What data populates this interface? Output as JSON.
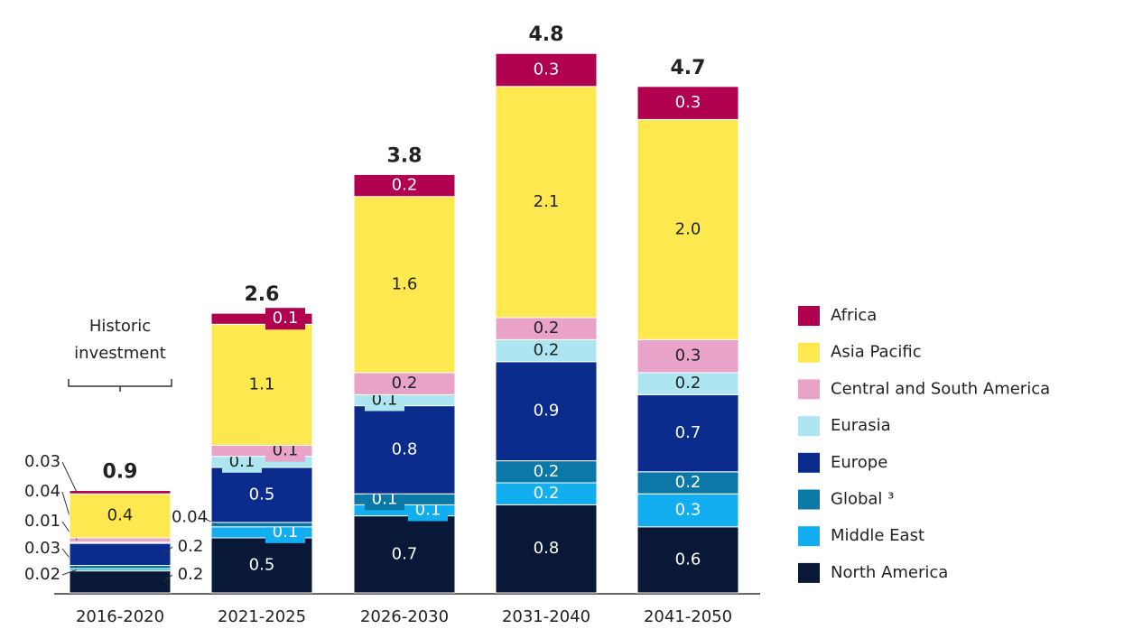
{
  "chart_data": {
    "type": "stacked-bar",
    "categories": [
      "2016-2020",
      "2021-2025",
      "2026-2030",
      "2031-2040",
      "2041-2050"
    ],
    "series": [
      {
        "name": "North America",
        "color": "#0a1838",
        "values": [
          0.2,
          0.5,
          0.7,
          0.8,
          0.6
        ]
      },
      {
        "name": "Middle East",
        "color": "#12aef0",
        "values": [
          0.02,
          0.1,
          0.1,
          0.2,
          0.3
        ]
      },
      {
        "name": "Global ³",
        "color": "#0b78a8",
        "values": [
          0.03,
          0.04,
          0.1,
          0.2,
          0.2
        ]
      },
      {
        "name": "Europe",
        "color": "#0b2c8c",
        "values": [
          0.2,
          0.5,
          0.8,
          0.9,
          0.7
        ]
      },
      {
        "name": "Eurasia",
        "color": "#ade5f0",
        "values": [
          0.01,
          0.1,
          0.1,
          0.2,
          0.2
        ]
      },
      {
        "name": "Central and South America",
        "color": "#e9a3c9",
        "values": [
          0.04,
          0.1,
          0.2,
          0.2,
          0.3
        ]
      },
      {
        "name": "Asia Pacific",
        "color": "#fde84f",
        "values": [
          0.4,
          1.1,
          1.6,
          2.1,
          2.0
        ],
        "value_labels": [
          "0.4",
          "1.1",
          "1.6",
          "2.1",
          "2.0"
        ]
      },
      {
        "name": "Africa",
        "color": "#b0004f",
        "values": [
          0.03,
          0.1,
          0.2,
          0.3,
          0.3
        ]
      }
    ],
    "totals": [
      0.9,
      2.6,
      3.8,
      4.8,
      4.7
    ],
    "annotation": [
      "Historic",
      "investment"
    ]
  }
}
